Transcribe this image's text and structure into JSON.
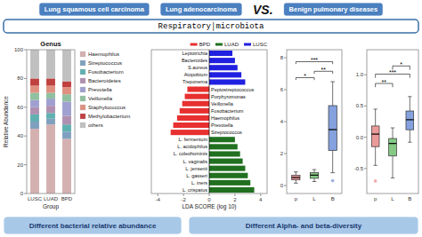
{
  "annotations": [
    {
      "text": "Lung squamous cell carcinoma",
      "color": "#4a7fc0"
    },
    {
      "text": "Lung adenocarcinoma",
      "color": "#4a7fc0"
    },
    {
      "text": "VS.",
      "color": "#111111"
    },
    {
      "text": "Benign pulmonary diseases",
      "color": "#4a7fc0"
    },
    {
      "text": "Respiratory│microbiota",
      "color": "#3a6fa8"
    },
    {
      "text": "Different bacterial relative abundance",
      "color": "#a8c8e8"
    },
    {
      "text": "Different Alpha- and beta-diversity",
      "color": "#a8c8e8"
    }
  ],
  "chart_data": [
    {
      "type": "bar",
      "stacked": true,
      "title": "Genus",
      "xlabel": "Group",
      "ylabel": "Relative Abundance",
      "categories": [
        "LUSC",
        "LUAD",
        "BPD"
      ],
      "series": [
        {
          "name": "Haemophilus",
          "color": "#d4b0b0",
          "values": [
            45,
            48,
            38
          ]
        },
        {
          "name": "Streptococcus",
          "color": "#80a0c0",
          "values": [
            5,
            4,
            5
          ]
        },
        {
          "name": "Fusobacterium",
          "color": "#60b0b0",
          "values": [
            5,
            4,
            5
          ]
        },
        {
          "name": "Bacteroidetes",
          "color": "#b090b0",
          "values": [
            5,
            5,
            6
          ]
        },
        {
          "name": "Prevotella",
          "color": "#a0a0d0",
          "values": [
            5,
            5,
            10
          ]
        },
        {
          "name": "Veillonella",
          "color": "#90c0a0",
          "values": [
            5,
            4,
            5
          ]
        },
        {
          "name": "Staphylococcus",
          "color": "#e09080",
          "values": [
            5,
            5,
            5
          ]
        },
        {
          "name": "Methylobacterium",
          "color": "#c04040",
          "values": [
            5,
            5,
            4
          ]
        },
        {
          "color": "#ffffff",
          "values": [
            0,
            0,
            0
          ]
        },
        {
          "name": "others",
          "color": "#c0c0c0",
          "values": [
            20,
            20,
            22
          ]
        }
      ],
      "ylim": [
        0,
        100
      ],
      "yticks": [
        0,
        20,
        40,
        60,
        80,
        100
      ],
      "grid": false,
      "legend": "right"
    },
    {
      "type": "bar",
      "orientation": "horizontal",
      "xlabel": "LDA SCORE (log 10)",
      "categories": [
        "L. crispatus",
        "L. iners",
        "L. gasseri",
        "L. jensenii",
        "L. vaginalis",
        "L. coleohominis",
        "L. acidophilus",
        "L. fermentum",
        "Streptococcus",
        "Prevotella",
        "Haemophilus",
        "Fusobacterium",
        "Veillonella",
        "Porphyromonas",
        "Peptostreptococcus",
        "Treponema",
        "Atopobium",
        "S.aureus",
        "Bacteroides",
        "Leptotrichia"
      ],
      "series": [
        {
          "name": "BPD",
          "color": "#e83030",
          "values": [
            null,
            null,
            null,
            null,
            null,
            null,
            null,
            null,
            -3.0,
            -2.8,
            -2.5,
            -2.3,
            -2.1,
            -1.9,
            -1.7,
            null,
            null,
            null,
            null,
            null
          ]
        },
        {
          "name": "LUAD",
          "color": "#207020",
          "values": [
            3.5,
            3.2,
            3.0,
            2.8,
            2.6,
            2.4,
            2.2,
            2.0,
            null,
            null,
            null,
            null,
            null,
            null,
            null,
            null,
            null,
            null,
            null,
            null
          ]
        },
        {
          "name": "LUSC",
          "color": "#2020e0",
          "values": [
            null,
            null,
            null,
            null,
            null,
            null,
            null,
            null,
            null,
            null,
            null,
            null,
            null,
            null,
            null,
            2.8,
            2.5,
            2.2,
            2.0,
            1.8
          ]
        }
      ],
      "xlim": [
        -4.5,
        4.5
      ],
      "xticks": [
        -4,
        -2,
        0,
        2,
        4
      ],
      "grid": false,
      "legend": "upper right"
    },
    {
      "type": "box",
      "categories": [
        "p",
        "L",
        "B"
      ],
      "med": [
        0.5,
        0.65,
        3.5
      ],
      "q1": [
        0.35,
        0.45,
        2.2
      ],
      "q3": [
        0.65,
        0.8,
        5.0
      ],
      "whislo": [
        0.15,
        0.25,
        0.8
      ],
      "whishi": [
        0.85,
        1.0,
        6.5
      ],
      "colors": [
        "#e88888",
        "#70c070",
        "#7090d8"
      ],
      "outliers": [
        null,
        null,
        0.3
      ],
      "annotations": [
        {
          "from": "p",
          "to": "L",
          "y": 6.6,
          "height": 0.15,
          "text": "*"
        },
        {
          "from": "L",
          "to": "B",
          "y": 7.0,
          "height": 0.15,
          "text": "**"
        },
        {
          "from": "p",
          "to": "B",
          "y": 7.6,
          "height": 0.15,
          "text": "***"
        }
      ],
      "ylim": [
        -0.5,
        8.5
      ],
      "yticks": [
        0,
        2,
        4,
        6,
        8
      ],
      "grid": false
    },
    {
      "type": "box",
      "categories": [
        "p",
        "L",
        "B"
      ],
      "med": [
        0.05,
        -0.1,
        0.28
      ],
      "q1": [
        -0.15,
        -0.3,
        0.12
      ],
      "q3": [
        0.18,
        -0.02,
        0.42
      ],
      "whislo": [
        -0.45,
        -0.65,
        -0.08
      ],
      "whishi": [
        0.45,
        0.15,
        0.65
      ],
      "colors": [
        "#e88888",
        "#70c070",
        "#7090d8"
      ],
      "outliers": [
        -0.7,
        null,
        null
      ],
      "annotations": [
        {
          "from": "p",
          "to": "L",
          "y": 0.8,
          "height": 0.06,
          "text": "**"
        },
        {
          "from": "p",
          "to": "B",
          "y": 0.95,
          "height": 0.06,
          "text": "***"
        },
        {
          "from": "L",
          "to": "B",
          "y": 1.08,
          "height": 0.06,
          "text": "*"
        }
      ],
      "ylim": [
        -0.9,
        1.4
      ],
      "yticks": [
        -0.5,
        {
          "value": 0,
          "label": "0.0"
        },
        0.5,
        {
          "value": 1,
          "label": "1.0"
        }
      ],
      "grid": false
    }
  ]
}
